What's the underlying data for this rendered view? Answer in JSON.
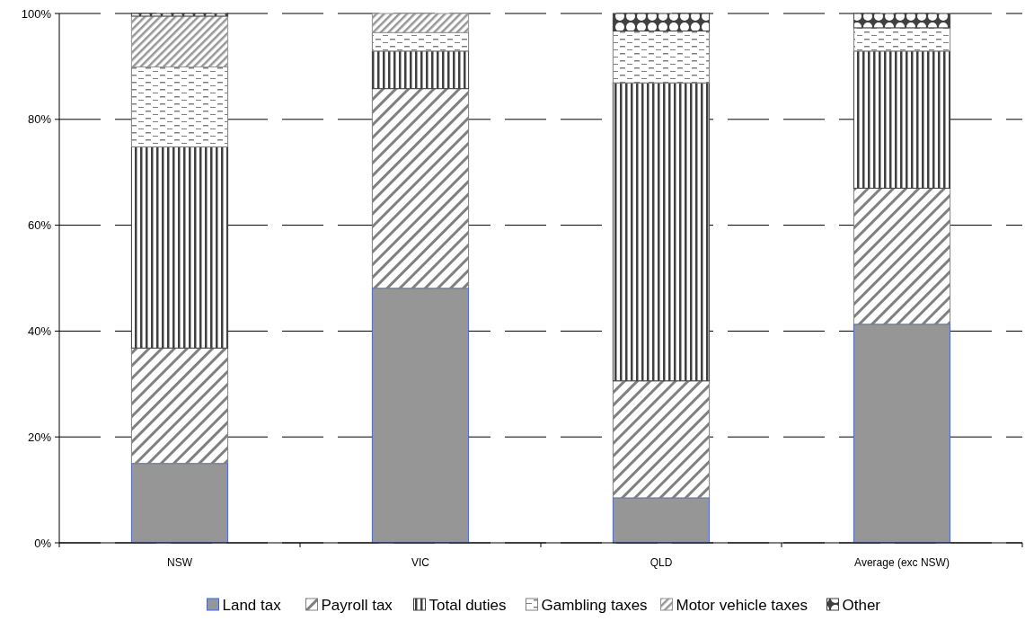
{
  "chart_data": {
    "type": "bar",
    "stacked": true,
    "categories": [
      "NSW",
      "VIC",
      "QLD",
      "Average (exc NSW)"
    ],
    "series": [
      {
        "name": "Land tax",
        "color": "#969696",
        "values": [
          15.0,
          48.1,
          8.5,
          41.3
        ]
      },
      {
        "name": "Payroll tax",
        "color": "#808080",
        "values": [
          21.8,
          37.7,
          22.1,
          25.7
        ]
      },
      {
        "name": "Total duties",
        "color": "#404040",
        "values": [
          38.0,
          7.1,
          56.3,
          25.9
        ]
      },
      {
        "name": "Gambling taxes",
        "color": "#808080",
        "values": [
          15.1,
          3.5,
          9.8,
          4.4
        ]
      },
      {
        "name": "Motor vehicle taxes",
        "color": "#969696",
        "values": [
          9.6,
          3.6,
          0,
          0
        ]
      },
      {
        "name": "Other",
        "color": "#404040",
        "values": [
          0.5,
          0,
          3.3,
          2.7
        ]
      }
    ],
    "ylim": [
      0,
      100
    ],
    "yticks": [
      {
        "value": 0,
        "label": "0%"
      },
      {
        "value": 20,
        "label": "20%"
      },
      {
        "value": 40,
        "label": "40%"
      },
      {
        "value": 60,
        "label": "60%"
      },
      {
        "value": 80,
        "label": "80%"
      },
      {
        "value": 100,
        "label": "100%"
      }
    ],
    "grid": "y",
    "legend": "bottom"
  }
}
